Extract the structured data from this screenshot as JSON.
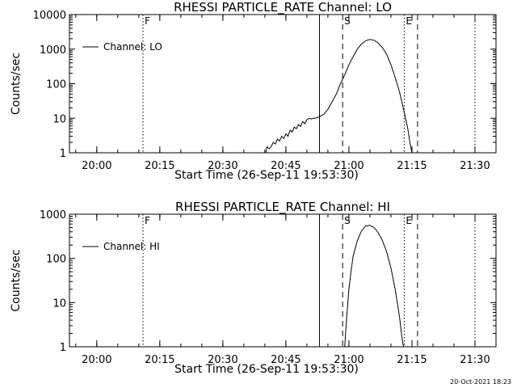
{
  "footer": {
    "timestamp": "20-Oct-2021 18:23"
  },
  "chart_data": [
    {
      "type": "line",
      "title": "RHESSI PARTICLE_RATE Channel: LO",
      "xlabel": "Start Time (26-Sep-11 19:53:30)",
      "ylabel": "Counts/sec",
      "yscale": "log",
      "ylim": [
        1,
        10000
      ],
      "xlim": [
        "19:53:30",
        "21:35:00"
      ],
      "yticks": [
        {
          "value": 1,
          "label": "1"
        },
        {
          "value": 10,
          "label": "10"
        },
        {
          "value": 100,
          "label": "100"
        },
        {
          "value": 1000,
          "label": "1000"
        },
        {
          "value": 10000,
          "label": "10000"
        }
      ],
      "xticks": [
        "20:00",
        "20:15",
        "20:30",
        "20:45",
        "21:00",
        "21:15",
        "21:30"
      ],
      "legend": {
        "position": "top-left",
        "entries": [
          "Channel: LO"
        ]
      },
      "series": [
        {
          "name": "Channel: LO",
          "points": [
            [
              "20:40:10",
              1.0
            ],
            [
              "20:40:30",
              1.5
            ],
            [
              "20:41:00",
              1.3
            ],
            [
              "20:41:30",
              1.5
            ],
            [
              "20:42:00",
              2.0
            ],
            [
              "20:42:30",
              1.8
            ],
            [
              "20:43:00",
              2.5
            ],
            [
              "20:43:30",
              2.2
            ],
            [
              "20:44:00",
              3.0
            ],
            [
              "20:44:30",
              2.6
            ],
            [
              "20:45:00",
              3.5
            ],
            [
              "20:45:30",
              3.0
            ],
            [
              "20:46:00",
              4.5
            ],
            [
              "20:46:30",
              4.0
            ],
            [
              "20:47:00",
              5.5
            ],
            [
              "20:47:30",
              5.0
            ],
            [
              "20:48:00",
              6.5
            ],
            [
              "20:48:30",
              5.8
            ],
            [
              "20:49:00",
              8.0
            ],
            [
              "20:49:30",
              7.0
            ],
            [
              "20:50:00",
              9.0
            ],
            [
              "20:50:30",
              10
            ],
            [
              "20:51:00",
              9.5
            ],
            [
              "20:51:30",
              10
            ],
            [
              "20:52:00",
              10
            ],
            [
              "20:53:00",
              11
            ],
            [
              "20:54:00",
              13
            ],
            [
              "20:55:00",
              18
            ],
            [
              "20:56:00",
              30
            ],
            [
              "20:57:00",
              50
            ],
            [
              "20:58:00",
              100
            ],
            [
              "20:59:00",
              180
            ],
            [
              "21:00:00",
              350
            ],
            [
              "21:01:00",
              600
            ],
            [
              "21:02:00",
              1000
            ],
            [
              "21:03:00",
              1400
            ],
            [
              "21:04:00",
              1750
            ],
            [
              "21:05:00",
              1900
            ],
            [
              "21:06:00",
              1800
            ],
            [
              "21:07:00",
              1500
            ],
            [
              "21:08:00",
              1100
            ],
            [
              "21:09:00",
              700
            ],
            [
              "21:10:00",
              350
            ],
            [
              "21:11:00",
              150
            ],
            [
              "21:12:00",
              60
            ],
            [
              "21:13:00",
              18
            ],
            [
              "21:14:00",
              5
            ],
            [
              "21:14:30",
              2
            ],
            [
              "21:15:00",
              1
            ]
          ]
        }
      ],
      "markers": [
        {
          "time": "20:11:00",
          "label": "F",
          "style": "dotted"
        },
        {
          "time": "20:53:00",
          "label": "",
          "style": "solid"
        },
        {
          "time": "20:58:30",
          "label": "S",
          "style": "dashed"
        },
        {
          "time": "21:13:10",
          "label": "E",
          "style": "dotted"
        },
        {
          "time": "21:16:20",
          "label": "",
          "style": "dashed"
        },
        {
          "time": "21:30:00",
          "label": "",
          "style": "dotted"
        }
      ]
    },
    {
      "type": "line",
      "title": "RHESSI PARTICLE_RATE Channel: HI",
      "xlabel": "Start Time (26-Sep-11 19:53:30)",
      "ylabel": "Counts/sec",
      "yscale": "log",
      "ylim": [
        1,
        1000
      ],
      "xlim": [
        "19:53:30",
        "21:35:00"
      ],
      "yticks": [
        {
          "value": 1,
          "label": "1"
        },
        {
          "value": 10,
          "label": "10"
        },
        {
          "value": 100,
          "label": "100"
        },
        {
          "value": 1000,
          "label": "1000"
        }
      ],
      "xticks": [
        "20:00",
        "20:15",
        "20:30",
        "20:45",
        "21:00",
        "21:15",
        "21:30"
      ],
      "legend": {
        "position": "top-left",
        "entries": [
          "Channel: HI"
        ]
      },
      "series": [
        {
          "name": "Channel: HI",
          "points": [
            [
              "20:59:00",
              1.0
            ],
            [
              "20:59:30",
              5
            ],
            [
              "21:00:00",
              20
            ],
            [
              "21:00:30",
              50
            ],
            [
              "21:01:00",
              110
            ],
            [
              "21:02:00",
              250
            ],
            [
              "21:03:00",
              420
            ],
            [
              "21:04:00",
              540
            ],
            [
              "21:05:00",
              560
            ],
            [
              "21:06:00",
              500
            ],
            [
              "21:07:00",
              380
            ],
            [
              "21:08:00",
              250
            ],
            [
              "21:09:00",
              140
            ],
            [
              "21:10:00",
              60
            ],
            [
              "21:11:00",
              20
            ],
            [
              "21:12:00",
              5
            ],
            [
              "21:12:40",
              1.5
            ],
            [
              "21:13:00",
              1.0
            ]
          ]
        }
      ],
      "markers": [
        {
          "time": "20:11:00",
          "label": "F",
          "style": "dotted"
        },
        {
          "time": "20:53:00",
          "label": "",
          "style": "solid"
        },
        {
          "time": "20:58:30",
          "label": "S",
          "style": "dashed"
        },
        {
          "time": "21:13:10",
          "label": "E",
          "style": "dotted"
        },
        {
          "time": "21:16:20",
          "label": "",
          "style": "dashed"
        },
        {
          "time": "21:30:00",
          "label": "",
          "style": "dotted"
        }
      ]
    }
  ]
}
